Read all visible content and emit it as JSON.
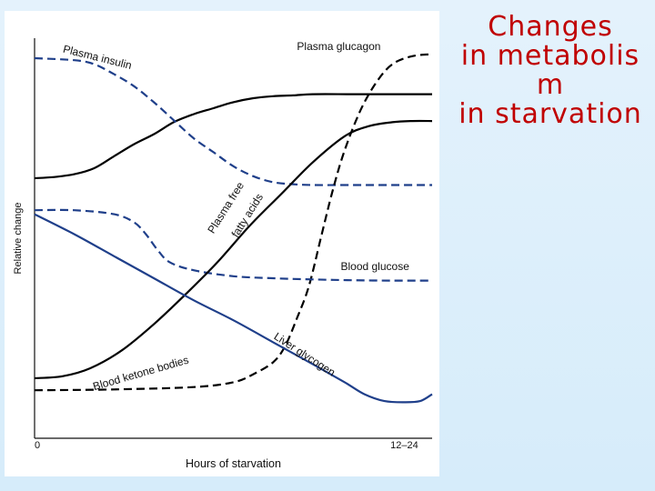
{
  "slide": {
    "title_lines": [
      "Changes",
      "in  metabolis",
      "m",
      "in starvation"
    ],
    "background": "#dbeefb",
    "title_color": "#c00000"
  },
  "chart_data": {
    "type": "line",
    "xlabel": "Hours of starvation",
    "ylabel": "Relative change",
    "xlim": [
      0,
      100
    ],
    "ylim": [
      0,
      100
    ],
    "x_tick_labels": [
      {
        "x": 0,
        "label": "0"
      },
      {
        "x": 93,
        "label": "12–24"
      }
    ],
    "series": [
      {
        "name": "Plasma glucagon",
        "style": "solid",
        "color": "#000000",
        "points": [
          [
            0,
            65
          ],
          [
            5,
            65.3
          ],
          [
            10,
            66
          ],
          [
            15,
            67.5
          ],
          [
            20,
            70.5
          ],
          [
            25,
            73.5
          ],
          [
            30,
            76
          ],
          [
            35,
            79
          ],
          [
            40,
            81
          ],
          [
            45,
            82.5
          ],
          [
            50,
            84
          ],
          [
            55,
            85
          ],
          [
            60,
            85.5
          ],
          [
            65,
            85.7
          ],
          [
            70,
            86
          ],
          [
            80,
            86
          ],
          [
            90,
            86
          ],
          [
            100,
            86
          ]
        ]
      },
      {
        "name": "Plasma insulin",
        "style": "dashed",
        "color": "#1f3f8a",
        "points": [
          [
            0,
            95
          ],
          [
            10,
            94.5
          ],
          [
            15,
            93.5
          ],
          [
            20,
            91
          ],
          [
            25,
            88
          ],
          [
            30,
            84
          ],
          [
            35,
            79.5
          ],
          [
            40,
            75
          ],
          [
            45,
            71.5
          ],
          [
            50,
            68
          ],
          [
            55,
            65.5
          ],
          [
            60,
            64
          ],
          [
            65,
            63.5
          ],
          [
            70,
            63.3
          ],
          [
            80,
            63.3
          ],
          [
            90,
            63.3
          ],
          [
            100,
            63.3
          ]
        ]
      },
      {
        "name": "Plasma free fatty acids",
        "style": "dashed",
        "color": "#000000",
        "points": [
          [
            0,
            12
          ],
          [
            20,
            12.2
          ],
          [
            40,
            12.8
          ],
          [
            50,
            14
          ],
          [
            55,
            16
          ],
          [
            60,
            19
          ],
          [
            63,
            23
          ],
          [
            66,
            30
          ],
          [
            69,
            38
          ],
          [
            72,
            50
          ],
          [
            75,
            62
          ],
          [
            78,
            72
          ],
          [
            82,
            82
          ],
          [
            86,
            89
          ],
          [
            90,
            93.5
          ],
          [
            95,
            95.5
          ],
          [
            100,
            96
          ]
        ]
      },
      {
        "name": "Blood glucose",
        "style": "dashed",
        "color": "#1f3f8a",
        "points": [
          [
            0,
            57
          ],
          [
            10,
            57
          ],
          [
            20,
            56
          ],
          [
            25,
            54
          ],
          [
            28,
            51
          ],
          [
            31,
            47
          ],
          [
            34,
            44
          ],
          [
            40,
            42
          ],
          [
            50,
            40.5
          ],
          [
            60,
            40
          ],
          [
            70,
            39.7
          ],
          [
            80,
            39.5
          ],
          [
            90,
            39.4
          ],
          [
            100,
            39.4
          ]
        ]
      },
      {
        "name": "Blood ketone bodies",
        "style": "solid",
        "color": "#000000",
        "points": [
          [
            0,
            15
          ],
          [
            7,
            15.5
          ],
          [
            14,
            17.5
          ],
          [
            22,
            22
          ],
          [
            30,
            28.5
          ],
          [
            38,
            36
          ],
          [
            46,
            44
          ],
          [
            54,
            53
          ],
          [
            62,
            61
          ],
          [
            70,
            69
          ],
          [
            78,
            75.5
          ],
          [
            84,
            78
          ],
          [
            90,
            79
          ],
          [
            95,
            79.3
          ],
          [
            100,
            79.3
          ]
        ]
      },
      {
        "name": "Liver glycogen",
        "style": "solid",
        "color": "#1f3f8a",
        "points": [
          [
            0,
            56
          ],
          [
            10,
            51
          ],
          [
            20,
            45.5
          ],
          [
            30,
            40
          ],
          [
            40,
            34.5
          ],
          [
            50,
            29.5
          ],
          [
            60,
            24
          ],
          [
            70,
            18.5
          ],
          [
            78,
            14
          ],
          [
            83,
            11
          ],
          [
            88,
            9.3
          ],
          [
            93,
            9
          ],
          [
            97,
            9.3
          ],
          [
            100,
            11
          ]
        ]
      }
    ],
    "annotations": [
      {
        "text": "Plasma insulin",
        "x": 7,
        "y": 96.5,
        "rotate": 14
      },
      {
        "text": "Plasma glucagon",
        "x": 66,
        "y": 97,
        "rotate": 0
      },
      {
        "text": "Plasma free",
        "x": 45,
        "y": 51,
        "rotate": -58
      },
      {
        "text": "fatty acids",
        "x": 51,
        "y": 50,
        "rotate": -58
      },
      {
        "text": "Blood glucose",
        "x": 77,
        "y": 42,
        "rotate": 0
      },
      {
        "text": "Blood ketone bodies",
        "x": 15,
        "y": 12,
        "rotate": -16
      },
      {
        "text": "Liver glycogen",
        "x": 60,
        "y": 25,
        "rotate": 33
      }
    ],
    "grid": false,
    "legend": "none"
  }
}
